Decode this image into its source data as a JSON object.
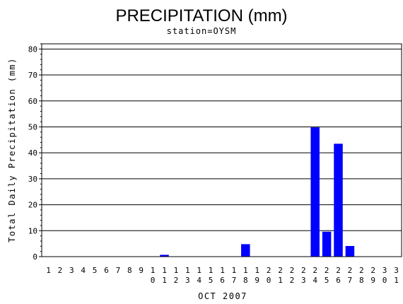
{
  "chart_data": {
    "type": "bar",
    "title": "PRECIPITATION (mm)",
    "subtitle": "station=OYSM",
    "xlabel": "OCT 2007",
    "ylabel": "Total Daily Precipitation (mm)",
    "ylim": [
      0,
      82
    ],
    "yticks": [
      0,
      10,
      20,
      30,
      40,
      50,
      60,
      70,
      80
    ],
    "grid": true,
    "bar_color": "#0000ff",
    "categories": [
      "1",
      "2",
      "3",
      "4",
      "5",
      "6",
      "7",
      "8",
      "9",
      "10",
      "11",
      "12",
      "13",
      "14",
      "15",
      "16",
      "17",
      "18",
      "19",
      "20",
      "21",
      "22",
      "23",
      "24",
      "25",
      "26",
      "27",
      "28",
      "29",
      "30",
      "31"
    ],
    "values": [
      0,
      0,
      0,
      0,
      0,
      0,
      0,
      0,
      0,
      0,
      0.7,
      0,
      0,
      0,
      0,
      0,
      0,
      4.8,
      0,
      0,
      0,
      0,
      0,
      49.8,
      9.6,
      43.5,
      4.1,
      0,
      0,
      0,
      0
    ]
  }
}
